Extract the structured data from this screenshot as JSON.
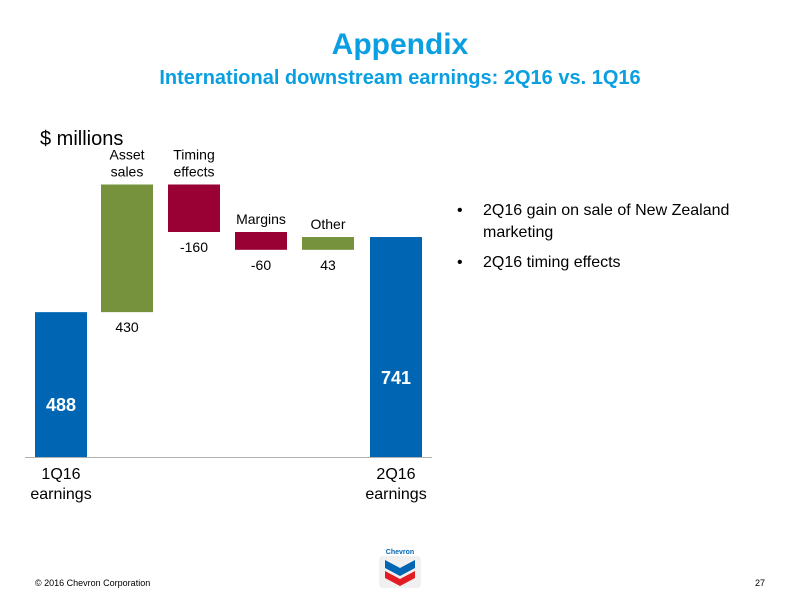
{
  "header": {
    "title": "Appendix",
    "subtitle": "International downstream earnings: 2Q16 vs. 1Q16"
  },
  "unit_label": "$ millions",
  "chart_data": {
    "type": "bar",
    "subtype": "waterfall",
    "categories": [
      [
        "1Q16",
        "earnings"
      ],
      [
        "Asset",
        "sales"
      ],
      [
        "Timing",
        "effects"
      ],
      [
        "Margins"
      ],
      [
        "Other"
      ],
      [
        "2Q16",
        "earnings"
      ]
    ],
    "values": [
      488,
      430,
      -160,
      -60,
      43,
      741
    ],
    "value_labels": [
      "488",
      "430",
      "-160",
      "-60",
      "43",
      "741"
    ],
    "kinds": [
      "total",
      "delta",
      "delta",
      "delta",
      "delta",
      "total"
    ],
    "colors": {
      "total": "#0066b3",
      "increase": "#76923c",
      "decrease": "#990033"
    },
    "ylim": [
      0,
      950
    ],
    "grid": false,
    "legend": "none"
  },
  "bullets": [
    "2Q16 gain on sale of New Zealand marketing",
    "2Q16 timing effects"
  ],
  "bullet_glyph": "•",
  "footer": {
    "copyright": "© 2016 Chevron Corporation",
    "page_number": "27"
  },
  "logo": {
    "icon": "chevron-logo-icon",
    "text": "Chevron",
    "colors": [
      "#0066b3",
      "#e31b23"
    ]
  }
}
